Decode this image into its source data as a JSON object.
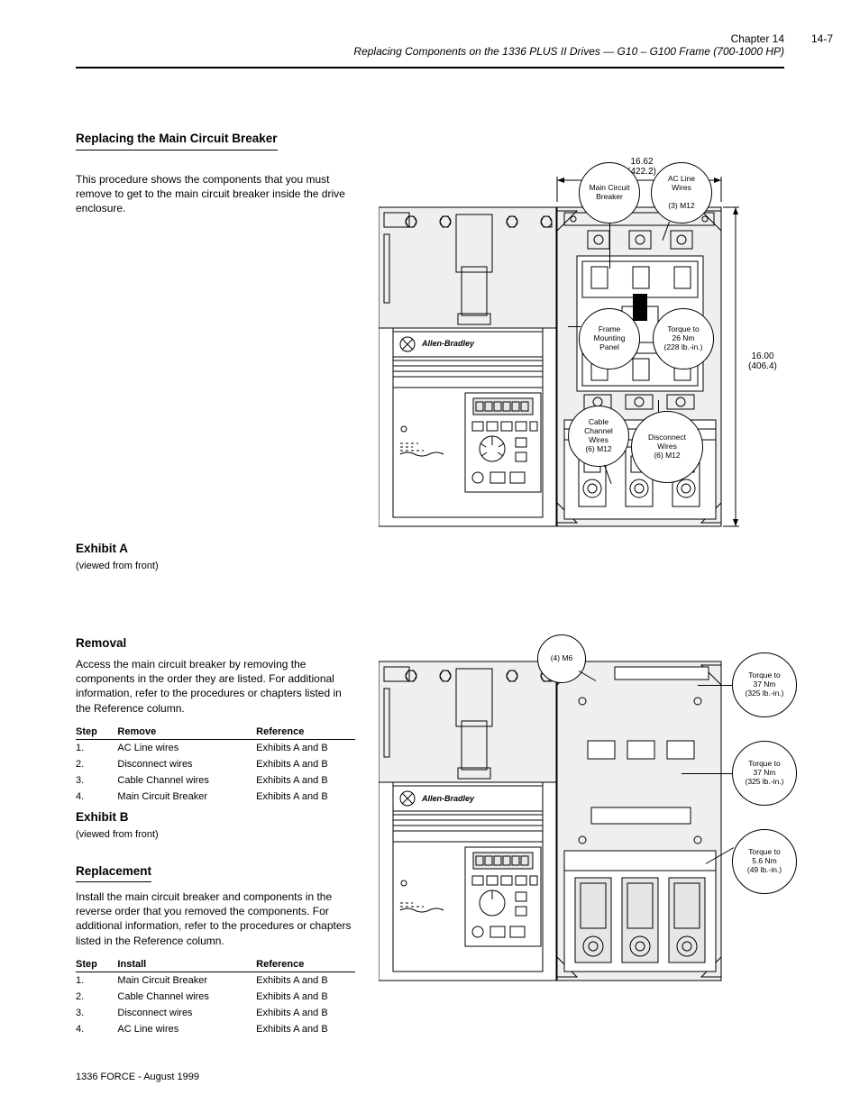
{
  "header": {
    "page_locator": "Chapter 14",
    "section_ref": "Replacing Components on the 1336 PLUS II Drives — G10 – G100 Frame (700-1000 HP)",
    "page_number": "14-7"
  },
  "left_column": {
    "section_title": "Replacing the Main Circuit Breaker",
    "intro": "This procedure shows the components that you must remove to get to the main circuit breaker inside the drive enclosure.",
    "removal": {
      "title": "Removal",
      "body": "Access the main circuit breaker by removing the components in the order they are listed. For additional information, refer to the procedures or chapters listed in the Reference column.",
      "table": {
        "columns": [
          "Step",
          "Remove",
          "Reference"
        ],
        "rows": [
          [
            "1.",
            "AC Line wires",
            "Exhibits A and B"
          ],
          [
            "2.",
            "Disconnect wires",
            "Exhibits A and B"
          ],
          [
            "3.",
            "Cable Channel wires",
            "Exhibits A and B"
          ],
          [
            "4.",
            "Main Circuit Breaker",
            "Exhibits A and B"
          ]
        ]
      }
    },
    "exhibit_a_label": "Exhibit A\n(viewed from front)",
    "exhibit_b_label": "Exhibit B\n(viewed from front)",
    "replacement": {
      "title": "Replacement",
      "body": "Install the main circuit breaker and components in the reverse order that you removed the components. For additional information, refer to the procedures or chapters listed in the Reference column.",
      "table": {
        "columns": [
          "Step",
          "Install",
          "Reference"
        ],
        "rows": [
          [
            "1.",
            "Main Circuit Breaker",
            "Exhibits A and B"
          ],
          [
            "2.",
            "Cable Channel wires",
            "Exhibits A and B"
          ],
          [
            "3.",
            "Disconnect wires",
            "Exhibits A and B"
          ],
          [
            "4.",
            "AC Line wires",
            "Exhibits A and B"
          ]
        ]
      }
    }
  },
  "figures": {
    "device_brand": "Allen-Bradley",
    "exhibit_a": {
      "width_in": "16.62",
      "width_mm": "(422.2)",
      "height_in": "16.00",
      "height_mm": "(406.4)",
      "callouts": {
        "cb": {
          "text": "Main Circuit\nBreaker",
          "diameter": 68
        },
        "ac": {
          "text": "AC Line\nWires\n\n(3) M12",
          "diameter": 68
        },
        "pan": {
          "text": "Frame\nMounting\nPanel",
          "diameter": 68
        },
        "tq": {
          "text": "Torque to\n26 Nm\n(228 lb.-in.)",
          "diameter": 68
        },
        "ch": {
          "text": "Cable\nChannel\nWires\n(6) M12",
          "diameter": 68
        },
        "dis": {
          "text": "Disconnect\nWires\n(6) M12",
          "diameter": 68
        }
      }
    },
    "exhibit_b": {
      "callouts": {
        "m": {
          "text": "(4) M6",
          "diameter": 54
        },
        "tq1": {
          "text": "Torque to\n37 Nm\n(325 lb.-in.)",
          "diameter": 72
        },
        "tq2": {
          "text": "Torque to\n37 Nm\n(325 lb.-in.)",
          "diameter": 72
        },
        "tq3": {
          "text": "Torque to\n5.6 Nm\n(49 lb.-in.)",
          "diameter": 72
        }
      }
    }
  },
  "footer": "1336 FORCE - August 1999",
  "colors": {
    "text": "#000000",
    "bg": "#ffffff",
    "shade": "#e6e6e6",
    "shade2": "#efefef"
  },
  "fonts": {
    "body_pt": 12,
    "section_title_pt": 13.5,
    "exhibit_label_pt": 11,
    "callout_pt": 8.5
  }
}
